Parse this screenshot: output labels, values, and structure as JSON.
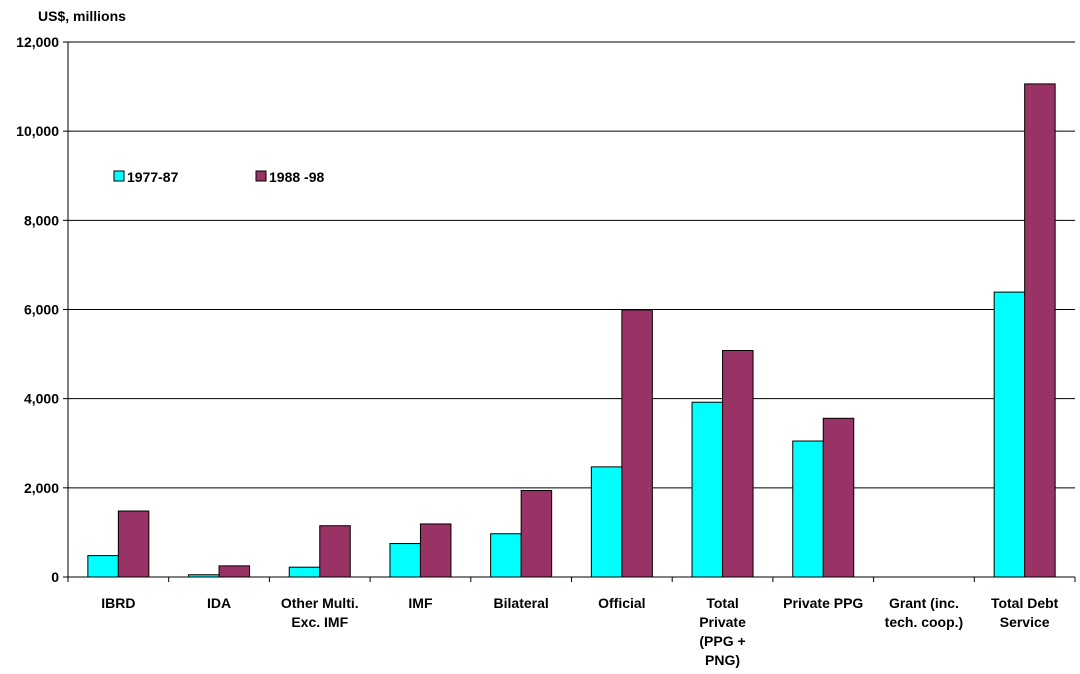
{
  "chart_data": {
    "type": "bar",
    "title": "",
    "ylabel": "US$, millions",
    "xlabel": "",
    "ylim": [
      0,
      12000
    ],
    "yticks": [
      "0",
      "2,000",
      "4,000",
      "6,000",
      "8,000",
      "10,000",
      "12,000"
    ],
    "ytick_values": [
      0,
      2000,
      4000,
      6000,
      8000,
      10000,
      12000
    ],
    "grid": true,
    "legend_position": "top-left",
    "categories": [
      [
        "IBRD"
      ],
      [
        "IDA"
      ],
      [
        "Other Multi.",
        "Exc. IMF"
      ],
      [
        "IMF"
      ],
      [
        "Bilateral"
      ],
      [
        "Official"
      ],
      [
        "Total",
        "Private",
        "(PPG +",
        "PNG)"
      ],
      [
        "Private PPG"
      ],
      [
        "Grant (inc.",
        "tech. coop.)"
      ],
      [
        "Total Debt",
        "Service"
      ]
    ],
    "series": [
      {
        "name": "1977-87",
        "color": "#00ffff",
        "values": [
          480,
          50,
          220,
          750,
          970,
          2470,
          3920,
          3050,
          0,
          6390
        ]
      },
      {
        "name": "1988 -98",
        "color": "#993366",
        "values": [
          1480,
          250,
          1150,
          1190,
          1940,
          5990,
          5080,
          3560,
          0,
          11060
        ]
      }
    ]
  }
}
